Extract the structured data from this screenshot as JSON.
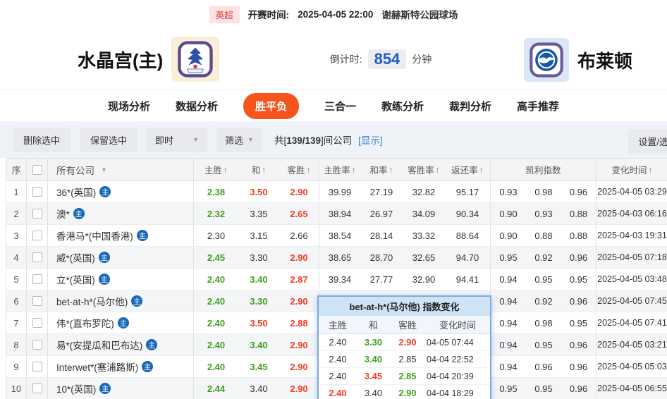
{
  "meta": {
    "league": "英超",
    "kickoff_label": "开赛时间:",
    "kickoff_time": "2025-04-05 22:00",
    "venue": "谢赫斯特公园球场"
  },
  "match": {
    "home_team": "水晶宫(主)",
    "away_team": "布莱顿",
    "countdown_label": "倒计时:",
    "countdown_value": "854",
    "countdown_unit": "分钟"
  },
  "tabs": [
    {
      "label": "现场分析",
      "active": false
    },
    {
      "label": "数据分析",
      "active": false
    },
    {
      "label": "胜平负",
      "active": true
    },
    {
      "label": "三合一",
      "active": false
    },
    {
      "label": "教练分析",
      "active": false
    },
    {
      "label": "裁判分析",
      "active": false
    },
    {
      "label": "高手推荐",
      "active": false
    }
  ],
  "toolbar": {
    "delete_selected": "删除选中",
    "keep_selected": "保留选中",
    "instant_dropdown": "即时",
    "filter_dropdown": "筛选",
    "count_prefix": "共[",
    "count": "139/139",
    "count_suffix": "]间公司",
    "show_link": "[显示]",
    "settings_button": "设置/选"
  },
  "icons": {
    "sort_asc": "↑",
    "dropdown": "▼"
  },
  "table": {
    "badge_char": "主",
    "headers": {
      "no": "序",
      "company": "所有公司",
      "home": "主胜",
      "draw": "和",
      "away": "客胜",
      "home_rate": "主胜率",
      "draw_rate": "和率",
      "away_rate": "客胜率",
      "return_rate": "返还率",
      "kelly": "凯利指数",
      "change_time": "变化时间"
    },
    "rows": [
      {
        "no": "1",
        "company": "36*(英国)",
        "w": {
          "v": "2.38",
          "c": "g"
        },
        "d": {
          "v": "3.50",
          "c": "r"
        },
        "l": {
          "v": "2.90",
          "c": "r"
        },
        "wr": "39.99",
        "dr": "27.19",
        "lr": "32.82",
        "ret": "95.17",
        "k1": "0.93",
        "k2": "0.98",
        "k3": "0.96",
        "time": "2025-04-05 03:29"
      },
      {
        "no": "2",
        "company": "澳*",
        "w": {
          "v": "2.32",
          "c": "g"
        },
        "d": {
          "v": "3.35",
          "c": "b"
        },
        "l": {
          "v": "2.65",
          "c": "r"
        },
        "wr": "38.94",
        "dr": "26.97",
        "lr": "34.09",
        "ret": "90.34",
        "k1": "0.90",
        "k2": "0.93",
        "k3": "0.88",
        "time": "2025-04-03 06:16"
      },
      {
        "no": "3",
        "company": "香港马*(中国香港)",
        "w": {
          "v": "2.30",
          "c": "b"
        },
        "d": {
          "v": "3.15",
          "c": "b"
        },
        "l": {
          "v": "2.66",
          "c": "b"
        },
        "wr": "38.54",
        "dr": "28.14",
        "lr": "33.32",
        "ret": "88.64",
        "k1": "0.90",
        "k2": "0.88",
        "k3": "0.88",
        "time": "2025-04-03 19:31"
      },
      {
        "no": "4",
        "company": "威*(英国)",
        "w": {
          "v": "2.45",
          "c": "g"
        },
        "d": {
          "v": "3.30",
          "c": "b"
        },
        "l": {
          "v": "2.90",
          "c": "r"
        },
        "wr": "38.65",
        "dr": "28.70",
        "lr": "32.65",
        "ret": "94.70",
        "k1": "0.95",
        "k2": "0.92",
        "k3": "0.96",
        "time": "2025-04-05 07:18"
      },
      {
        "no": "5",
        "company": "立*(英国)",
        "w": {
          "v": "2.40",
          "c": "g"
        },
        "d": {
          "v": "3.40",
          "c": "g"
        },
        "l": {
          "v": "2.87",
          "c": "r"
        },
        "wr": "39.34",
        "dr": "27.77",
        "lr": "32.90",
        "ret": "94.41",
        "k1": "0.94",
        "k2": "0.95",
        "k3": "0.95",
        "time": "2025-04-05 03:48"
      },
      {
        "no": "6",
        "company": "bet-at-h*(马尔他)",
        "w": {
          "v": "2.40",
          "c": "g"
        },
        "d": {
          "v": "3.30",
          "c": "g"
        },
        "l": {
          "v": "2.90",
          "c": "r"
        },
        "wr": "",
        "dr": "",
        "lr": "",
        "ret": "",
        "k1": "0.94",
        "k2": "0.92",
        "k3": "0.96",
        "time": "2025-04-05 07:45"
      },
      {
        "no": "7",
        "company": "伟*(直布罗陀)",
        "w": {
          "v": "2.40",
          "c": "g"
        },
        "d": {
          "v": "3.50",
          "c": "r"
        },
        "l": {
          "v": "2.88",
          "c": "r"
        },
        "wr": "",
        "dr": "",
        "lr": "",
        "ret": "",
        "k1": "0.94",
        "k2": "0.98",
        "k3": "0.95",
        "time": "2025-04-05 07:41"
      },
      {
        "no": "8",
        "company": "易*(安提瓜和巴布达)",
        "w": {
          "v": "2.40",
          "c": "g"
        },
        "d": {
          "v": "3.40",
          "c": "g"
        },
        "l": {
          "v": "2.90",
          "c": "r"
        },
        "wr": "",
        "dr": "",
        "lr": "",
        "ret": "",
        "k1": "0.94",
        "k2": "0.95",
        "k3": "0.96",
        "time": "2025-04-05 03:21"
      },
      {
        "no": "9",
        "company": "Interwet*(塞浦路斯)",
        "w": {
          "v": "2.40",
          "c": "g"
        },
        "d": {
          "v": "3.45",
          "c": "g"
        },
        "l": {
          "v": "2.90",
          "c": "r"
        },
        "wr": "",
        "dr": "",
        "lr": "",
        "ret": "",
        "k1": "0.94",
        "k2": "0.96",
        "k3": "0.96",
        "time": "2025-04-05 05:03"
      },
      {
        "no": "10",
        "company": "10*(英国)",
        "w": {
          "v": "2.44",
          "c": "g"
        },
        "d": {
          "v": "3.40",
          "c": "b"
        },
        "l": {
          "v": "2.90",
          "c": "r"
        },
        "wr": "",
        "dr": "",
        "lr": "",
        "ret": "",
        "k1": "0.95",
        "k2": "0.95",
        "k3": "0.96",
        "time": "2025-04-05 06:55"
      }
    ]
  },
  "popup": {
    "title": "bet-at-h*(马尔他) 指数变化",
    "headers": {
      "home": "主胜",
      "draw": "和",
      "away": "客胜",
      "time": "变化时间"
    },
    "rows": [
      {
        "w": {
          "v": "2.40",
          "c": "b"
        },
        "d": {
          "v": "3.30",
          "c": "g"
        },
        "l": {
          "v": "2.90",
          "c": "r"
        },
        "time": "04-05 07:44"
      },
      {
        "w": {
          "v": "2.40",
          "c": "b"
        },
        "d": {
          "v": "3.40",
          "c": "g"
        },
        "l": {
          "v": "2.85",
          "c": "b"
        },
        "time": "04-04 22:52"
      },
      {
        "w": {
          "v": "2.40",
          "c": "b"
        },
        "d": {
          "v": "3.45",
          "c": "r"
        },
        "l": {
          "v": "2.85",
          "c": "g"
        },
        "time": "04-04 20:39"
      },
      {
        "w": {
          "v": "2.40",
          "c": "r"
        },
        "d": {
          "v": "3.40",
          "c": "b"
        },
        "l": {
          "v": "2.90",
          "c": "g"
        },
        "time": "04-04 18:29"
      }
    ]
  },
  "colors": {
    "green": "#3f9e1f",
    "red": "#ef3d23",
    "accent": "#f5541c",
    "blue": "#3b82d8",
    "cdblue": "#1a5fc8"
  }
}
